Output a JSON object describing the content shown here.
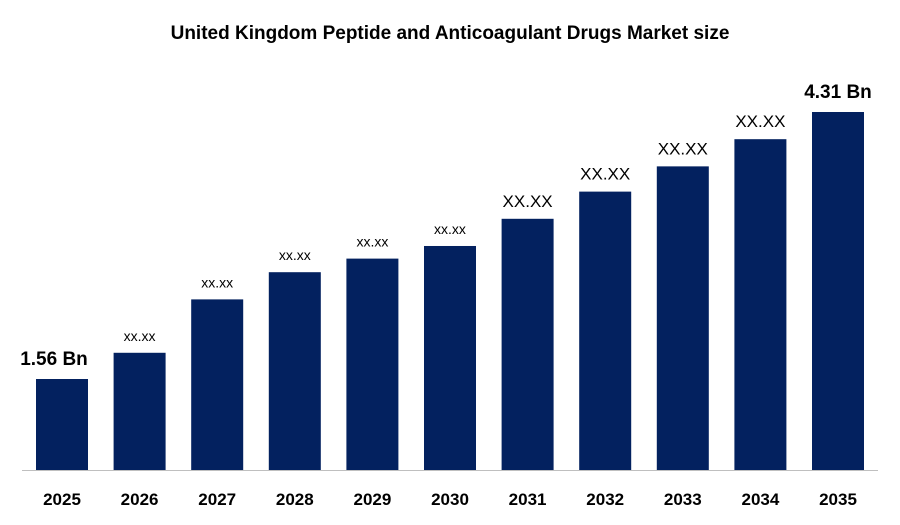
{
  "chart_data": {
    "type": "bar",
    "title": "United Kingdom Peptide and Anticoagulant Drugs Market size",
    "xlabel": "",
    "ylabel": "",
    "categories": [
      "2025",
      "2026",
      "2027",
      "2028",
      "2029",
      "2030",
      "2031",
      "2032",
      "2033",
      "2034",
      "2035"
    ],
    "values": [
      1.56,
      1.83,
      2.38,
      2.66,
      2.8,
      2.93,
      3.21,
      3.49,
      3.75,
      4.03,
      4.31
    ],
    "data_labels": [
      "1.56 Bn",
      "xx.xx",
      "xx.xx",
      "xx.xx",
      "xx.xx",
      "xx.xx",
      "XX.XX",
      "XX.XX",
      "XX.XX",
      "XX.XX",
      "4.31 Bn"
    ],
    "grid": false,
    "legend": "none",
    "bar_color": "#03215F",
    "axis_color": "#BFBFBF"
  }
}
